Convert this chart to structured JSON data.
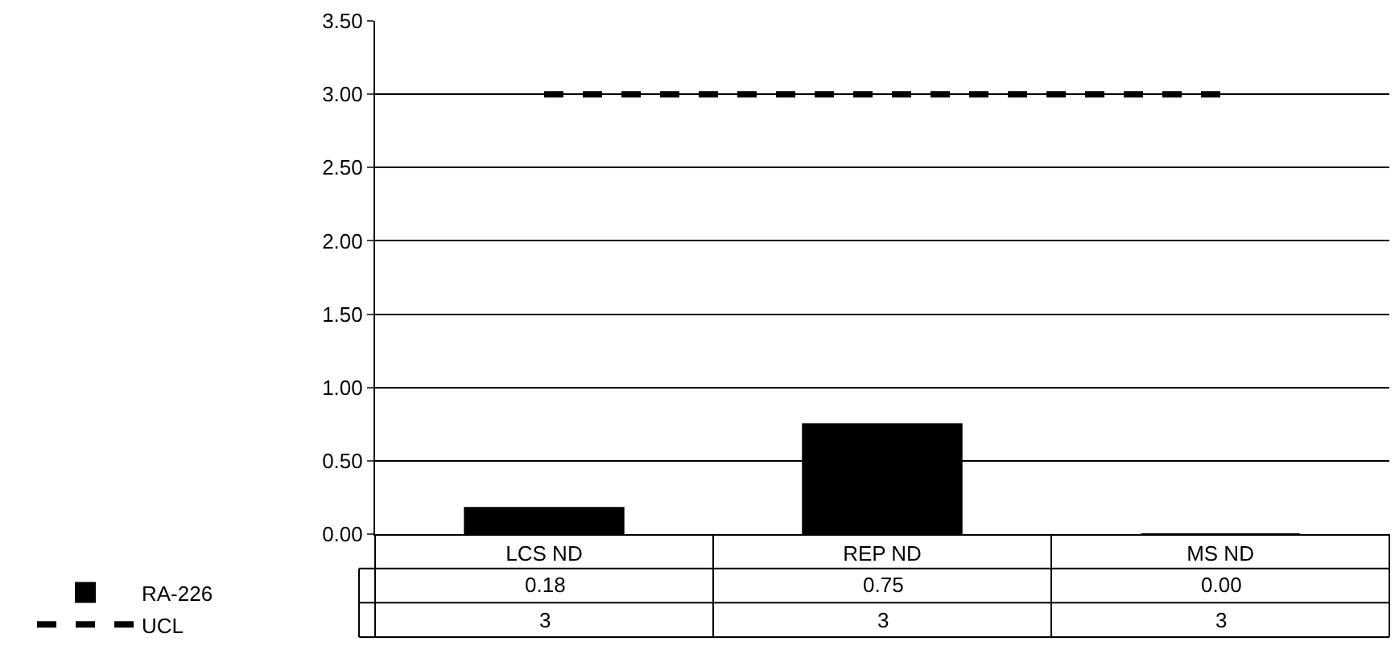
{
  "chart_data": {
    "type": "bar",
    "categories": [
      "LCS ND",
      "REP ND",
      "MS ND"
    ],
    "series": [
      {
        "name": "RA-226",
        "color": "#000000",
        "values": [
          0.18,
          0.75,
          0.0
        ],
        "value_labels": [
          "0.18",
          "0.75",
          "0.00"
        ]
      },
      {
        "name": "UCL",
        "type": "line",
        "color": "#000000",
        "line_style": "dashed",
        "values": [
          3,
          3,
          3
        ],
        "value_labels": [
          "3",
          "3",
          "3"
        ]
      }
    ],
    "ylim": [
      0,
      3.5
    ],
    "yticks": [
      {
        "value": 0,
        "label": "0.00"
      },
      {
        "value": 0.5,
        "label": "0.50"
      },
      {
        "value": 1,
        "label": "1.00"
      },
      {
        "value": 1.5,
        "label": "1.50"
      },
      {
        "value": 2,
        "label": "2.00"
      },
      {
        "value": 2.5,
        "label": "2.50"
      },
      {
        "value": 3,
        "label": "3.00"
      },
      {
        "value": 3.5,
        "label": "3.50"
      }
    ],
    "grid": "y",
    "legend": "bottom left",
    "marker": "none"
  }
}
